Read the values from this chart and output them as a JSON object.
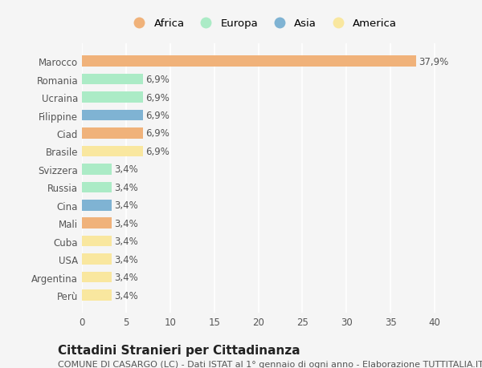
{
  "countries": [
    "Perù",
    "Argentina",
    "USA",
    "Cuba",
    "Mali",
    "Cina",
    "Russia",
    "Svizzera",
    "Brasile",
    "Ciad",
    "Filippine",
    "Ucraina",
    "Romania",
    "Marocco"
  ],
  "values": [
    3.4,
    3.4,
    3.4,
    3.4,
    3.4,
    3.4,
    3.4,
    3.4,
    6.9,
    6.9,
    6.9,
    6.9,
    6.9,
    37.9
  ],
  "labels": [
    "3,4%",
    "3,4%",
    "3,4%",
    "3,4%",
    "3,4%",
    "3,4%",
    "3,4%",
    "3,4%",
    "6,9%",
    "6,9%",
    "6,9%",
    "6,9%",
    "6,9%",
    "37,9%"
  ],
  "continents": [
    "America",
    "America",
    "America",
    "America",
    "Africa",
    "Asia",
    "Europa",
    "Europa",
    "America",
    "Africa",
    "Asia",
    "Europa",
    "Europa",
    "Africa"
  ],
  "colors": {
    "Africa": "#F0B27A",
    "Europa": "#ABEBC6",
    "Asia": "#7FB3D3",
    "America": "#F9E79F"
  },
  "legend_order": [
    "Africa",
    "Europa",
    "Asia",
    "America"
  ],
  "legend_colors": {
    "Africa": "#F0B27A",
    "Europa": "#ABEBC6",
    "Asia": "#7FB3D3",
    "America": "#F9E79F"
  },
  "title": "Cittadini Stranieri per Cittadinanza",
  "subtitle": "COMUNE DI CASARGO (LC) - Dati ISTAT al 1° gennaio di ogni anno - Elaborazione TUTTITALIA.IT",
  "xlim": [
    0,
    41
  ],
  "xticks": [
    0,
    5,
    10,
    15,
    20,
    25,
    30,
    35,
    40
  ],
  "background_color": "#f5f5f5",
  "bar_height": 0.6,
  "label_fontsize": 8.5,
  "tick_fontsize": 8.5,
  "title_fontsize": 11,
  "subtitle_fontsize": 8
}
